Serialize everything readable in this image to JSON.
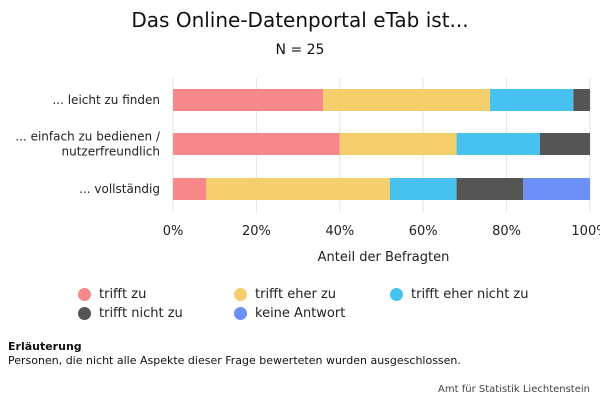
{
  "title": "Das Online-Datenportal eTab ist...",
  "subtitle": "N = 25",
  "note": {
    "title": "Erläuterung",
    "text": "Personen, die nicht alle Aspekte dieser Frage bewerteten wurden ausgeschlossen."
  },
  "source": "Amt für Statistik Liechtenstein",
  "chart_data": {
    "type": "bar",
    "orientation": "horizontal",
    "stacked": true,
    "title": "Das Online-Datenportal eTab ist...",
    "subtitle": "N = 25",
    "xlabel": "Anteil der Befragten",
    "ylabel": "",
    "xlim": [
      0,
      1
    ],
    "x_ticks": [
      0,
      0.2,
      0.4,
      0.6,
      0.8,
      1.0
    ],
    "x_tick_labels": [
      "0%",
      "20%",
      "40%",
      "60%",
      "80%",
      "100%"
    ],
    "grid": "vertical",
    "legend_position": "bottom",
    "categories": [
      [
        "... leicht zu finden"
      ],
      [
        "... einfach zu bedienen /",
        "nutzerfreundlich"
      ],
      [
        "... vollständig"
      ]
    ],
    "series": [
      {
        "name": "trifft zu",
        "color": "#f7898b",
        "values": [
          0.36,
          0.4,
          0.08
        ]
      },
      {
        "name": "trifft eher zu",
        "color": "#f5cf6b",
        "values": [
          0.4,
          0.28,
          0.44
        ]
      },
      {
        "name": "trifft eher nicht zu",
        "color": "#47c2ef",
        "values": [
          0.2,
          0.2,
          0.16
        ]
      },
      {
        "name": "trifft nicht zu",
        "color": "#555555",
        "values": [
          0.04,
          0.12,
          0.16
        ]
      },
      {
        "name": "keine Antwort",
        "color": "#6d90f7",
        "values": [
          0.0,
          0.0,
          0.16
        ]
      }
    ]
  }
}
